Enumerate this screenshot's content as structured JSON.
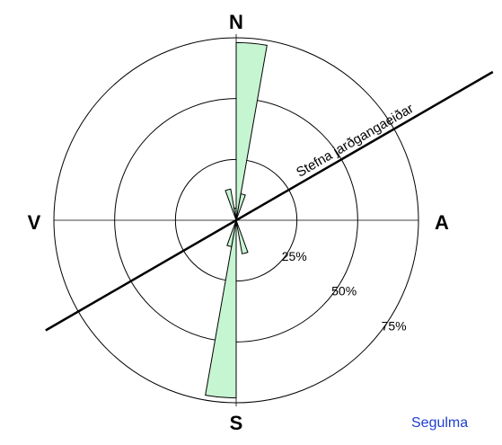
{
  "chart_data": {
    "type": "rose",
    "directions": {
      "north": "N",
      "east": "A",
      "south": "S",
      "west": "V"
    },
    "x": [
      0,
      10,
      340,
      350,
      160,
      180,
      190
    ],
    "values": [
      73,
      11,
      13,
      5,
      14,
      73,
      11
    ],
    "color": "#c6f5d2",
    "rlim": [
      0,
      75
    ],
    "rticks": [
      {
        "value": 25,
        "label": "25%"
      },
      {
        "value": 50,
        "label": "50%"
      },
      {
        "value": 75,
        "label": "75%"
      }
    ],
    "annotation": {
      "text": "Stefna jarðgangaeiðar",
      "bearing": 60
    },
    "footer": "Segulma"
  }
}
